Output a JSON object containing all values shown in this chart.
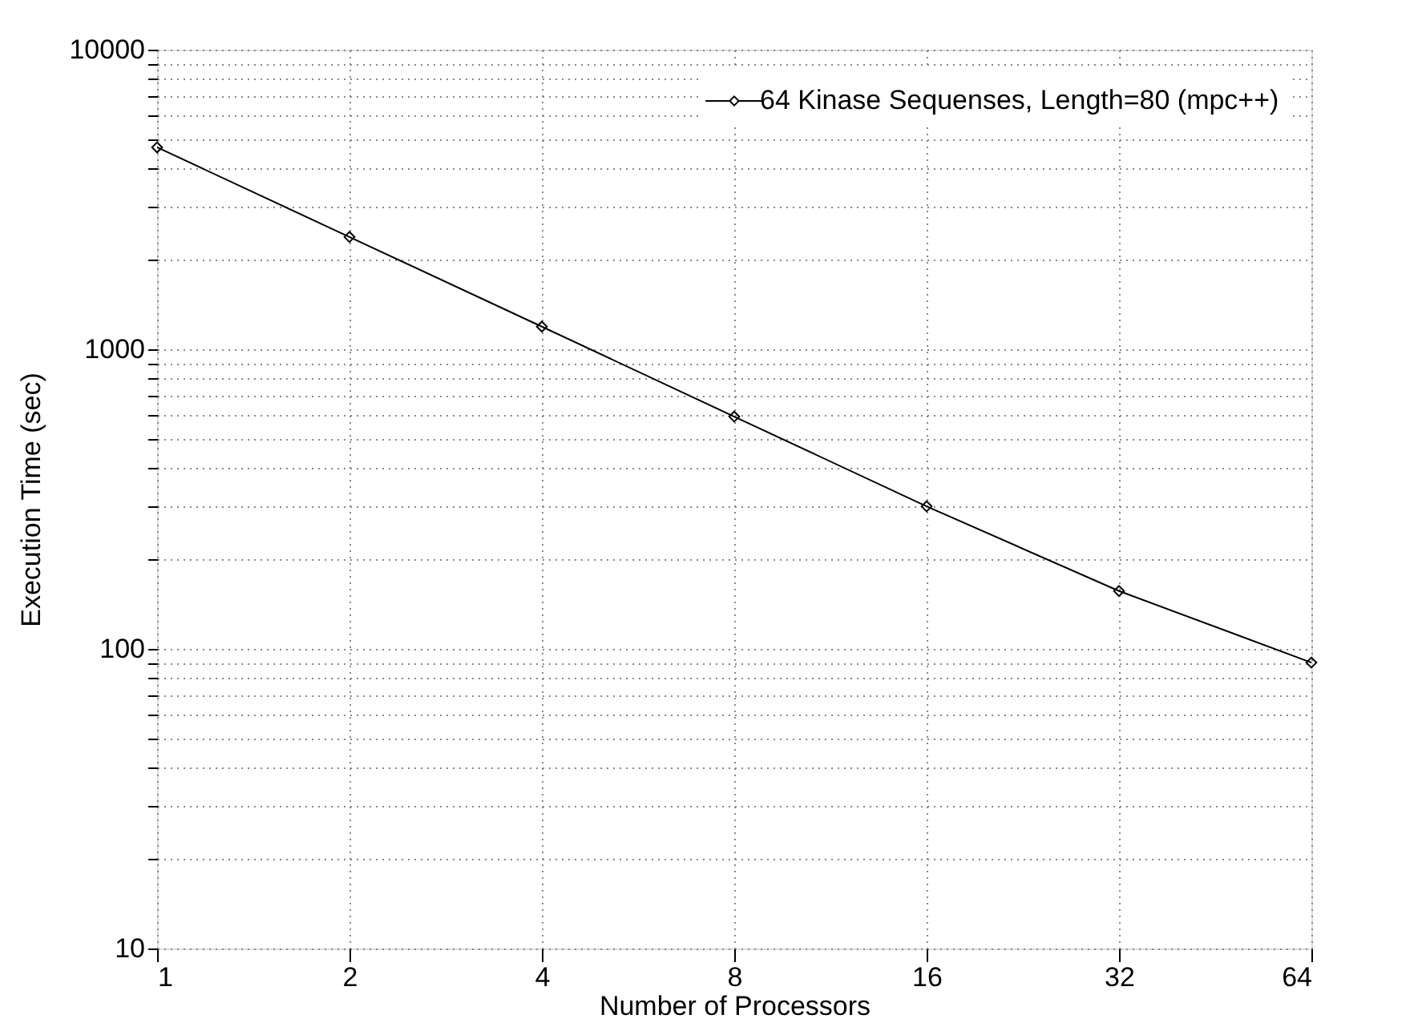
{
  "chart_data": {
    "type": "line",
    "xlabel": "Number of Processors",
    "ylabel": "Execution Time (sec)",
    "x": [
      1,
      2,
      4,
      8,
      16,
      32,
      64
    ],
    "series": [
      {
        "name": "64 Kinase Sequenses, Length=80 (mpc++)",
        "color": "#000000",
        "values": [
          4720,
          2370,
          1190,
          596,
          299,
          156,
          90
        ]
      }
    ],
    "log": "xy",
    "xlim": [
      1,
      64
    ],
    "xticks": [
      1,
      2,
      4,
      8,
      16,
      32,
      64
    ],
    "ylim": [
      10,
      10000
    ],
    "yticks": [
      10,
      {
        "value": 20,
        "label": null
      },
      {
        "value": 30,
        "label": null
      },
      {
        "value": 40,
        "label": null
      },
      {
        "value": 50,
        "label": null
      },
      {
        "value": 60,
        "label": null
      },
      {
        "value": 70,
        "label": null
      },
      {
        "value": 80,
        "label": null
      },
      {
        "value": 90,
        "label": null
      },
      100,
      {
        "value": 200,
        "label": null
      },
      {
        "value": 300,
        "label": null
      },
      {
        "value": 400,
        "label": null
      },
      {
        "value": 500,
        "label": null
      },
      {
        "value": 600,
        "label": null
      },
      {
        "value": 700,
        "label": null
      },
      {
        "value": 800,
        "label": null
      },
      {
        "value": 900,
        "label": null
      },
      1000,
      {
        "value": 2000,
        "label": null
      },
      {
        "value": 3000,
        "label": null
      },
      {
        "value": 4000,
        "label": null
      },
      {
        "value": 5000,
        "label": null
      },
      {
        "value": 6000,
        "label": null
      },
      {
        "value": 7000,
        "label": null
      },
      {
        "value": 8000,
        "label": null
      },
      {
        "value": 9000,
        "label": null
      },
      10000
    ],
    "grid": true,
    "legend": "top right",
    "marker": "diamond",
    "line_style": "solid"
  }
}
